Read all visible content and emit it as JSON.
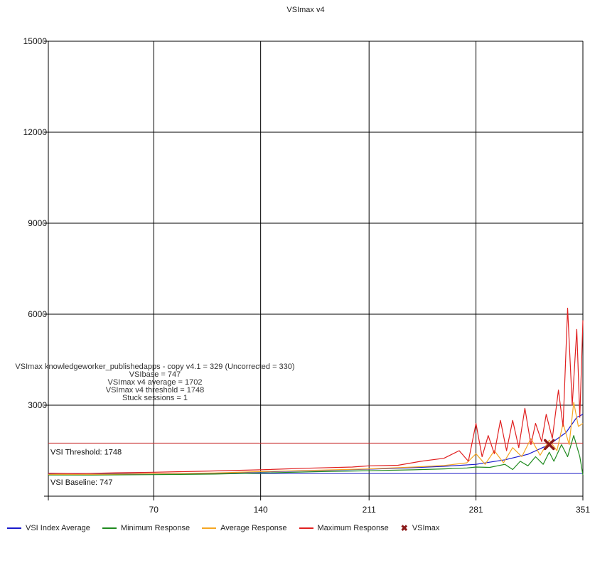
{
  "chart_data": {
    "type": "line",
    "title": "VSImax v4",
    "xlabel": "",
    "ylabel": "",
    "xlim": [
      1,
      351
    ],
    "ylim": [
      0,
      15000
    ],
    "x_ticks": [
      "70",
      "140",
      "211",
      "281",
      "351"
    ],
    "x_tick_values": [
      70,
      140,
      211,
      281,
      351
    ],
    "y_ticks": [
      "3000",
      "6000",
      "9000",
      "12000",
      "15000"
    ],
    "y_tick_values": [
      3000,
      6000,
      9000,
      12000,
      15000
    ],
    "grid": true,
    "legend_position": "bottom",
    "series": [
      {
        "name": "VSI Index Average",
        "color": "#1a1acc",
        "points": [
          [
            1,
            720
          ],
          [
            30,
            720
          ],
          [
            70,
            735
          ],
          [
            110,
            760
          ],
          [
            140,
            800
          ],
          [
            180,
            850
          ],
          [
            211,
            890
          ],
          [
            240,
            940
          ],
          [
            260,
            985
          ],
          [
            281,
            1050
          ],
          [
            300,
            1200
          ],
          [
            315,
            1380
          ],
          [
            329,
            1702
          ],
          [
            340,
            2100
          ],
          [
            347,
            2600
          ],
          [
            351,
            2700
          ]
        ]
      },
      {
        "name": "Minimum Response",
        "color": "#1f8a1f",
        "points": [
          [
            1,
            700
          ],
          [
            30,
            695
          ],
          [
            70,
            710
          ],
          [
            110,
            730
          ],
          [
            140,
            765
          ],
          [
            180,
            810
          ],
          [
            211,
            840
          ],
          [
            240,
            870
          ],
          [
            260,
            900
          ],
          [
            275,
            930
          ],
          [
            281,
            960
          ],
          [
            290,
            950
          ],
          [
            300,
            1050
          ],
          [
            305,
            880
          ],
          [
            310,
            1150
          ],
          [
            315,
            1000
          ],
          [
            320,
            1300
          ],
          [
            325,
            1050
          ],
          [
            329,
            1450
          ],
          [
            332,
            1150
          ],
          [
            337,
            1700
          ],
          [
            341,
            1300
          ],
          [
            345,
            2000
          ],
          [
            349,
            1300
          ],
          [
            351,
            700
          ]
        ]
      },
      {
        "name": "Average Response",
        "color": "#f5a623",
        "points": [
          [
            1,
            720
          ],
          [
            30,
            720
          ],
          [
            70,
            740
          ],
          [
            110,
            765
          ],
          [
            140,
            810
          ],
          [
            180,
            860
          ],
          [
            211,
            900
          ],
          [
            240,
            960
          ],
          [
            260,
            1010
          ],
          [
            275,
            1100
          ],
          [
            281,
            1400
          ],
          [
            287,
            1050
          ],
          [
            293,
            1500
          ],
          [
            299,
            1100
          ],
          [
            305,
            1600
          ],
          [
            311,
            1300
          ],
          [
            317,
            1900
          ],
          [
            323,
            1350
          ],
          [
            329,
            1850
          ],
          [
            334,
            1500
          ],
          [
            338,
            2400
          ],
          [
            342,
            1700
          ],
          [
            345,
            3100
          ],
          [
            348,
            2300
          ],
          [
            351,
            2400
          ]
        ]
      },
      {
        "name": "Maximum Response",
        "color": "#e02020",
        "points": [
          [
            1,
            760
          ],
          [
            20,
            740
          ],
          [
            45,
            770
          ],
          [
            70,
            790
          ],
          [
            100,
            820
          ],
          [
            140,
            870
          ],
          [
            170,
            920
          ],
          [
            200,
            960
          ],
          [
            211,
            1000
          ],
          [
            230,
            1020
          ],
          [
            245,
            1150
          ],
          [
            260,
            1250
          ],
          [
            270,
            1500
          ],
          [
            276,
            1150
          ],
          [
            281,
            2400
          ],
          [
            285,
            1300
          ],
          [
            289,
            2000
          ],
          [
            293,
            1400
          ],
          [
            297,
            2500
          ],
          [
            301,
            1500
          ],
          [
            305,
            2500
          ],
          [
            309,
            1600
          ],
          [
            313,
            2900
          ],
          [
            317,
            1700
          ],
          [
            320,
            2400
          ],
          [
            324,
            1800
          ],
          [
            327,
            2700
          ],
          [
            331,
            1900
          ],
          [
            335,
            3500
          ],
          [
            338,
            2300
          ],
          [
            341,
            6200
          ],
          [
            344,
            3000
          ],
          [
            347,
            5500
          ],
          [
            349,
            2600
          ],
          [
            351,
            5800
          ]
        ]
      }
    ],
    "reference_lines": [
      {
        "label": "VSI Threshold: 1748",
        "value": 1748,
        "color": "#c83030"
      },
      {
        "label": "VSI Baseline: 747",
        "value": 747,
        "color": "#2020c8"
      }
    ],
    "vsimax_marker": {
      "name": "VSImax",
      "x": 329,
      "y": 1702,
      "color": "#8b1a1a"
    },
    "annotations": [
      "VSImax knowledgeworker_publishedapps - copy v4.1 = 329 (Uncorrected = 330)",
      "VSIbase = 747",
      "VSImax v4 average = 1702",
      "VSImax v4 threshold = 1748",
      "Stuck sessions = 1"
    ],
    "legend": [
      {
        "label": "VSI Index Average",
        "color": "#1a1acc",
        "kind": "line"
      },
      {
        "label": "Minimum Response",
        "color": "#1f8a1f",
        "kind": "line"
      },
      {
        "label": "Average Response",
        "color": "#f5a623",
        "kind": "line"
      },
      {
        "label": "Maximum Response",
        "color": "#e02020",
        "kind": "line"
      },
      {
        "label": "VSImax",
        "color": "#8b1a1a",
        "kind": "x-marker"
      }
    ]
  }
}
